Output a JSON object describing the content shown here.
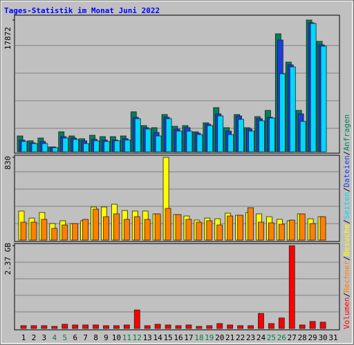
{
  "chart_data": [
    {
      "type": "bar",
      "title": "Tages-Statistik im Monat Juni 2022",
      "ylim": [
        0,
        17872
      ],
      "yticks": [
        17872
      ],
      "series": [
        {
          "name": "Anfragen",
          "color": "#00805c",
          "values": [
            2153,
            1498,
            1872,
            655,
            2714,
            2153,
            1778,
            2246,
            2059,
            2059,
            2153,
            5429,
            3557,
            3276,
            5054,
            3463,
            3557,
            2714,
            3931,
            5990,
            3276,
            5054,
            3276,
            4774,
            5616,
            16006,
            12168,
            5616,
            17872,
            14976,
            null
          ]
        },
        {
          "name": "Dateien",
          "color": "#1c3ce0",
          "values": [
            1591,
            1217,
            1404,
            655,
            2059,
            1872,
            1498,
            1685,
            1591,
            1591,
            1778,
            4680,
            3276,
            2621,
            4680,
            3089,
            3276,
            2527,
            3744,
            5148,
            2808,
            4867,
            3089,
            4493,
            4680,
            15163,
            11794,
            5148,
            17500,
            14508,
            null
          ]
        },
        {
          "name": "Seiten",
          "color": "#00d8ff",
          "values": [
            1404,
            1123,
            1123,
            562,
            1872,
            1685,
            1123,
            1498,
            1404,
            1498,
            1591,
            4493,
            3089,
            2153,
            4493,
            2808,
            2808,
            2340,
            3557,
            4867,
            2340,
            4399,
            2808,
            4212,
            4586,
            10577,
            11513,
            4118,
            17410,
            14321,
            null
          ]
        }
      ]
    },
    {
      "type": "bar",
      "ylim": [
        0,
        830
      ],
      "yticks": [
        830
      ],
      "series": [
        {
          "name": "Besuche",
          "color": "#ffff00",
          "values": [
            291,
            221,
            277,
            166,
            194,
            166,
            194,
            332,
            332,
            360,
            297,
            291,
            291,
            263,
            830,
            256,
            242,
            201,
            221,
            214,
            270,
            249,
            277,
            263,
            235,
            208,
            194,
            263,
            214,
            235,
            null
          ]
        },
        {
          "name": "Rechner",
          "color": "#ff8000",
          "values": [
            180,
            180,
            208,
            118,
            152,
            166,
            208,
            311,
            235,
            263,
            208,
            235,
            208,
            263,
            318,
            256,
            208,
            180,
            194,
            152,
            242,
            249,
            325,
            180,
            173,
            159,
            201,
            263,
            166,
            235,
            null
          ]
        }
      ]
    },
    {
      "type": "bar",
      "ylim": [
        0,
        2.37
      ],
      "yticks": [
        {
          "value": 2.37,
          "label": "2.37 GB"
        }
      ],
      "categories": [
        "1",
        "2",
        "3",
        "4",
        "5",
        "6",
        "7",
        "8",
        "9",
        "10",
        "11",
        "12",
        "13",
        "14",
        "15",
        "16",
        "17",
        "18",
        "19",
        "20",
        "21",
        "22",
        "23",
        "24",
        "25",
        "26",
        "27",
        "28",
        "29",
        "30",
        "31"
      ],
      "weekend_days": [
        3,
        4,
        10,
        11,
        17,
        18,
        24,
        25
      ],
      "weekend_color": "#008040",
      "legend_separator": "/",
      "series": [
        {
          "name": "Volumen",
          "color": "#ff0000",
          "values": [
            0.08,
            0.08,
            0.08,
            0.06,
            0.12,
            0.1,
            0.1,
            0.1,
            0.08,
            0.08,
            0.1,
            0.53,
            0.08,
            0.12,
            0.1,
            0.08,
            0.1,
            0.06,
            0.08,
            0.14,
            0.1,
            0.08,
            0.08,
            0.43,
            0.14,
            0.3,
            2.37,
            0.1,
            0.2,
            0.18,
            null
          ]
        }
      ]
    }
  ]
}
